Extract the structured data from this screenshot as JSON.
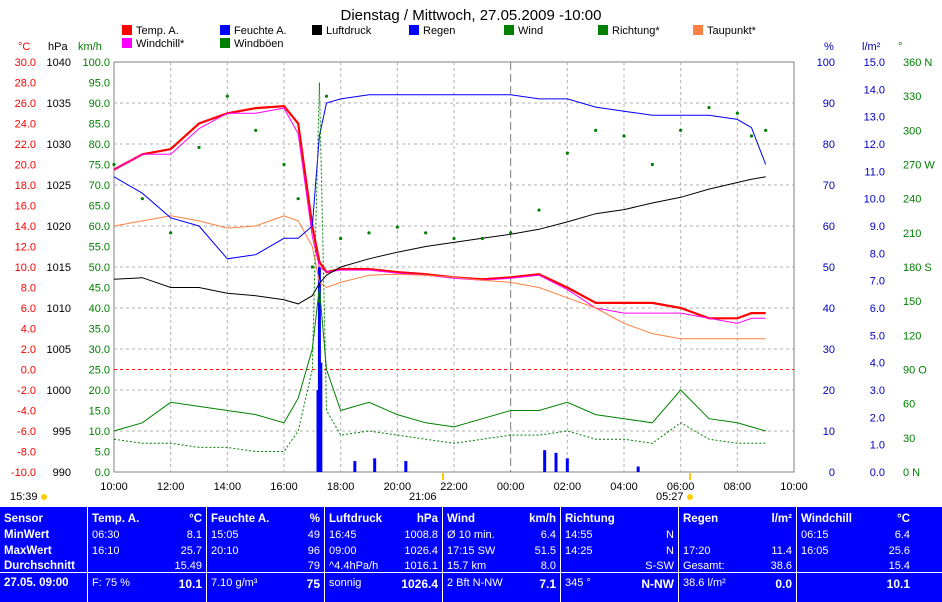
{
  "title": "Dienstag / Mittwoch, 27.05.2009  -10:00",
  "axes": {
    "temp": {
      "unit": "°C",
      "min": -10,
      "max": 30,
      "step": 2,
      "color": "#ff0000"
    },
    "pressure": {
      "unit": "hPa",
      "min": 990,
      "max": 1040,
      "step": 5,
      "color": "#000000"
    },
    "wind": {
      "unit": "km/h",
      "min": 0,
      "max": 100,
      "step": 5,
      "color": "#008000"
    },
    "humidity": {
      "unit": "%",
      "min": 0,
      "max": 100,
      "step": 10,
      "color": "#0000c0"
    },
    "rain": {
      "unit": "l/m²",
      "min": 0,
      "max": 15,
      "step": 1,
      "color": "#0000c0"
    },
    "direction": {
      "unit": "°",
      "ticks": [
        "0 N",
        "30",
        "60",
        "90 O",
        "120",
        "150",
        "180 S",
        "210",
        "240",
        "270 W",
        "300",
        "330",
        "360 N"
      ],
      "color": "#008000"
    }
  },
  "legend": [
    {
      "label": "Temp. A.",
      "color": "#ff0000"
    },
    {
      "label": "Feuchte A.",
      "color": "#0000ff"
    },
    {
      "label": "Luftdruck",
      "color": "#000000"
    },
    {
      "label": "Regen",
      "color": "#0000ff"
    },
    {
      "label": "Wind",
      "color": "#008000"
    },
    {
      "label": "Richtung*",
      "color": "#008000"
    },
    {
      "label": "Taupunkt*",
      "color": "#ff8040"
    },
    {
      "label": "Windchill*",
      "color": "#ff00ff"
    },
    {
      "label": "Windböen",
      "color": "#008000"
    }
  ],
  "xaxis": {
    "ticks": [
      "10:00",
      "12:00",
      "14:00",
      "16:00",
      "18:00",
      "20:00",
      "22:00",
      "00:00",
      "02:00",
      "04:00",
      "06:00",
      "08:00",
      "10:00"
    ],
    "sunset": "15:39",
    "sunrise_label": "05:27",
    "marker": "21:06"
  },
  "chart_data": {
    "type": "line",
    "x_hours_from_start": [
      0,
      1,
      2,
      3,
      4,
      5,
      6,
      6.5,
      7,
      7.25,
      7.5,
      8,
      9,
      10,
      11,
      12,
      13,
      14,
      15,
      16,
      17,
      18,
      19,
      20,
      21,
      22,
      22.5,
      23
    ],
    "series": [
      {
        "name": "Temp. A.",
        "unit": "°C",
        "values": [
          19.5,
          21,
          21.5,
          24,
          25,
          25.5,
          25.7,
          24,
          14,
          10.5,
          9.5,
          9.8,
          9.8,
          9.5,
          9.3,
          9,
          8.8,
          9,
          9.3,
          8,
          6.5,
          6.5,
          6.5,
          6,
          5,
          5,
          5.5,
          5.5
        ]
      },
      {
        "name": "Windchill*",
        "unit": "°C",
        "values": [
          19.5,
          21,
          21,
          23.5,
          25,
          25,
          25.5,
          23,
          13,
          10,
          9.5,
          9.7,
          9.7,
          9.4,
          9.2,
          8.9,
          8.7,
          8.9,
          9.2,
          7.8,
          6,
          5.5,
          5.5,
          5.5,
          5,
          4.5,
          5,
          5
        ]
      },
      {
        "name": "Taupunkt*",
        "unit": "°C",
        "values": [
          14,
          14.5,
          15,
          14.5,
          13.8,
          14,
          15,
          14.5,
          12,
          8.5,
          8,
          8.5,
          9.2,
          9.3,
          9.2,
          9,
          8.7,
          8.5,
          8,
          7,
          6,
          4.5,
          3.5,
          3,
          3,
          3,
          3,
          3
        ]
      },
      {
        "name": "Feuchte A.",
        "unit": "%",
        "values": [
          72,
          68,
          62,
          60,
          52,
          53,
          57,
          57,
          60,
          82,
          90,
          91,
          92,
          92,
          92,
          92,
          92,
          92,
          91,
          91,
          89,
          88,
          87,
          87,
          87,
          86,
          84,
          75
        ]
      },
      {
        "name": "Luftdruck",
        "unit": "hPa",
        "values": [
          1013.5,
          1013.7,
          1012.5,
          1012.5,
          1011.8,
          1011.5,
          1011,
          1010.5,
          1011.5,
          1013,
          1014,
          1015,
          1016,
          1016.8,
          1017.5,
          1018,
          1018.5,
          1019,
          1019.6,
          1020.5,
          1021.5,
          1022,
          1022.8,
          1023.5,
          1024.5,
          1025.3,
          1025.7,
          1026
        ]
      },
      {
        "name": "Wind",
        "unit": "km/h",
        "values": [
          10,
          12,
          17,
          16,
          15,
          14,
          12,
          18,
          30,
          45,
          25,
          15,
          17,
          14,
          12,
          11,
          13,
          15,
          15,
          17,
          14,
          13,
          12,
          20,
          13,
          12,
          11,
          10
        ]
      },
      {
        "name": "Windböen",
        "unit": "km/h",
        "values": [
          8,
          7,
          7,
          6,
          6,
          5,
          5,
          10,
          25,
          95,
          15,
          9,
          10,
          9,
          8,
          7,
          8,
          9,
          9,
          10,
          8,
          8,
          7,
          12,
          8,
          7,
          7,
          7
        ]
      },
      {
        "name": "Richtung*",
        "unit": "°",
        "values": [
          270,
          240,
          210,
          285,
          330,
          300,
          270,
          240,
          180,
          150,
          330,
          205,
          210,
          215,
          210,
          205,
          205,
          210,
          230,
          280,
          300,
          295,
          270,
          300,
          320,
          315,
          295,
          300
        ]
      }
    ],
    "rain_bars": {
      "unit": "l/m²",
      "x_hours_from_start": [
        7.2,
        7.25,
        7.3,
        8.5,
        9.2,
        10.3,
        15.2,
        15.6,
        16,
        18.5
      ],
      "values": [
        3,
        7.5,
        4,
        0.4,
        0.5,
        0.4,
        0.8,
        0.7,
        0.5,
        0.2
      ]
    }
  },
  "table": {
    "headers": [
      {
        "label": "Sensor"
      },
      {
        "label": "Temp. A.",
        "unit": "°C"
      },
      {
        "label": "Feuchte A.",
        "unit": "%"
      },
      {
        "label": "Luftdruck",
        "unit": "hPa"
      },
      {
        "label": "Wind",
        "unit": "km/h"
      },
      {
        "label": "Richtung",
        "unit": ""
      },
      {
        "label": "Regen",
        "unit": "l/m²"
      },
      {
        "label": "Windchill",
        "unit": "°C"
      }
    ],
    "row_labels": [
      "MinWert",
      "MaxWert",
      "Durchschnitt",
      "27.05. 09:00"
    ],
    "temp": [
      [
        "06:30",
        "8.1"
      ],
      [
        "16:10",
        "25.7"
      ],
      [
        "",
        "15.49"
      ],
      [
        "F: 75 %",
        "10.1"
      ]
    ],
    "humidity": [
      [
        "15:05",
        "49"
      ],
      [
        "20:10",
        "96"
      ],
      [
        "",
        "79"
      ],
      [
        "7.10 g/m³",
        "75"
      ]
    ],
    "pressure": [
      [
        "16:45",
        "1008.8"
      ],
      [
        "09:00",
        "1026.4"
      ],
      [
        "^4.4hPa/h",
        "1016.1"
      ],
      [
        "sonnig",
        "1026.4"
      ]
    ],
    "wind": [
      [
        "Ø 10 min.",
        "6.4"
      ],
      [
        "17:15   SW",
        "51.5"
      ],
      [
        "15.7 km",
        "8.0"
      ],
      [
        "2 Bft N-NW",
        "7.1"
      ]
    ],
    "direction": [
      [
        "14:55",
        "N"
      ],
      [
        "14:25",
        "N"
      ],
      [
        "",
        "S-SW"
      ],
      [
        "345 °",
        "N-NW"
      ]
    ],
    "rain": [
      [
        "",
        ""
      ],
      [
        "17:20",
        "11.4"
      ],
      [
        "Gesamt:",
        "38.6"
      ],
      [
        "38.6 l/m²",
        "0.0"
      ]
    ],
    "windchill": [
      [
        "06:15",
        "6.4"
      ],
      [
        "16:05",
        "25.6"
      ],
      [
        "",
        "15.4"
      ],
      [
        "",
        "10.1"
      ]
    ]
  }
}
